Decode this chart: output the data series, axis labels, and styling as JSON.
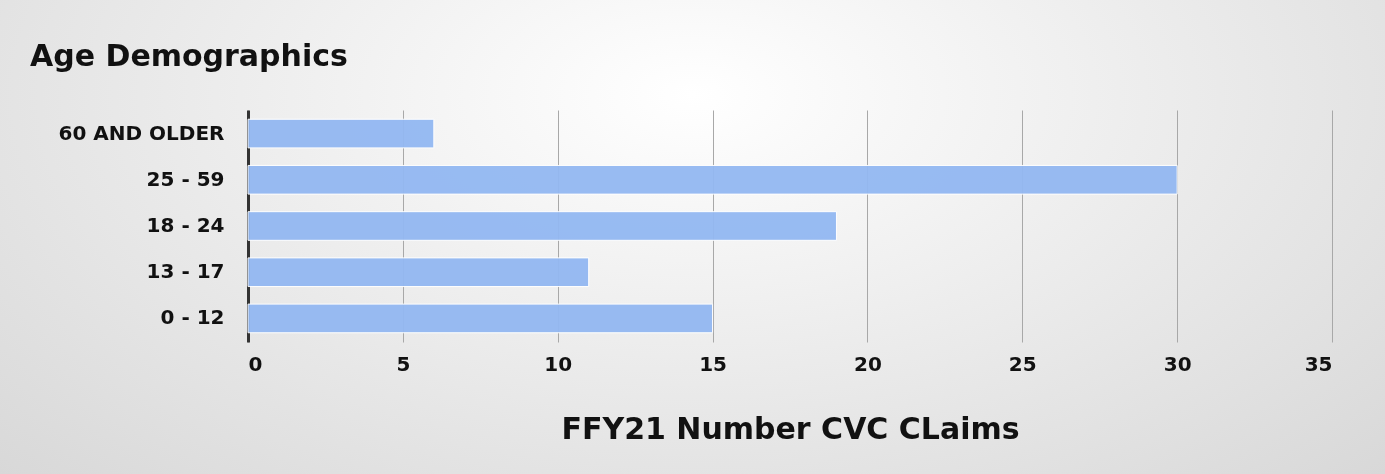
{
  "chart_data": {
    "type": "bar",
    "orientation": "horizontal",
    "title": "Age Demographics",
    "xlabel": "FFY21 Number CVC CLaims",
    "categories": [
      "60 AND OLDER",
      "25 - 59",
      "18 - 24",
      "13 - 17",
      "0 - 12"
    ],
    "values": [
      6,
      30,
      19,
      11,
      15
    ],
    "color": "#93b8f2",
    "xlim": [
      0,
      35
    ],
    "xticks": [
      0,
      5,
      10,
      15,
      20,
      25,
      30,
      35
    ],
    "grid": "x"
  }
}
